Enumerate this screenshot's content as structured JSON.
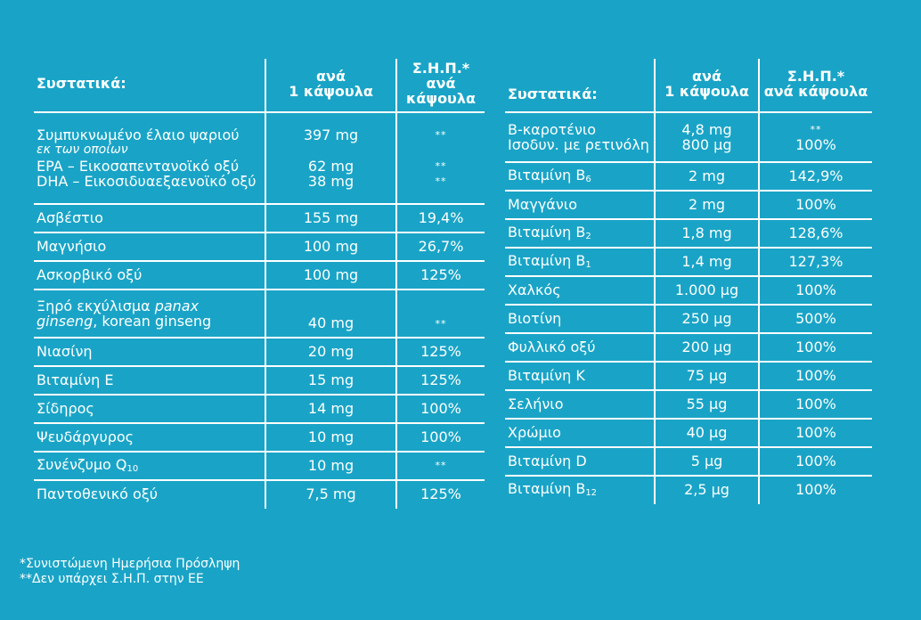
{
  "headers": {
    "ingredients": "Συστατικά:",
    "per_capsule_1": "ανά",
    "per_capsule_2": "1 κάψουλα",
    "rda_1": "Σ.Η.Π.*",
    "rda_2": "ανά κάψουλα"
  },
  "left_rows": [
    {
      "name": "Ασβέστιο",
      "amount": "155 mg",
      "rda": "19,4%"
    },
    {
      "name": "Μαγνήσιο",
      "amount": "100 mg",
      "rda": "26,7%"
    },
    {
      "name": "Ασκορβικό οξύ",
      "amount": "100 mg",
      "rda": "125%"
    },
    {
      "name": "Νιασίνη",
      "amount": "20 mg",
      "rda": "125%"
    },
    {
      "name": "Βιταμίνη Ε",
      "amount": "15 mg",
      "rda": "125%"
    },
    {
      "name": "Σίδηρος",
      "amount": "14 mg",
      "rda": "100%"
    },
    {
      "name": "Ψευδάργυρος",
      "amount": "10 mg",
      "rda": "100%"
    },
    {
      "name_base": "Συνένζυμο Q",
      "name_sub": "10",
      "amount": "10 mg",
      "rda": "**"
    },
    {
      "name": "Παντοθενικό οξύ",
      "amount": "7,5 mg",
      "rda": "125%"
    }
  ],
  "fish_oil": {
    "name": "Συμπυκνωμένο έλαιο ψαριού",
    "sub_label": "εκ των οποίων",
    "epa": "EPA – Εικοσαπεντανοϊκό οξύ",
    "dha": "DHA – Εικοσιδυαεξαενοϊκό οξύ",
    "amount": "397 mg",
    "epa_amount": "62 mg",
    "dha_amount": "38 mg",
    "rda": "**",
    "epa_rda": "**",
    "dha_rda": "**"
  },
  "ginseng": {
    "name_a": "Ξηρό εκχύλισμα ",
    "name_b": "panax",
    "name_c": "ginseng",
    "name_d": ", korean ginseng",
    "amount": "40 mg",
    "rda": "**"
  },
  "beta_carotene": {
    "name": "Β-καροτένιο",
    "equiv": "Ισοδυν. με ρετινόλη",
    "amount": "4,8 mg",
    "equiv_amount": "800 μg",
    "rda": "**",
    "equiv_rda": "100%"
  },
  "right_rows": [
    {
      "name_base": "Βιταμίνη Β",
      "name_sub": "6",
      "amount": "2 mg",
      "rda": "142,9%"
    },
    {
      "name": "Μαγγάνιο",
      "amount": "2 mg",
      "rda": "100%"
    },
    {
      "name_base": "Βιταμίνη Β",
      "name_sub": "2",
      "amount": "1,8 mg",
      "rda": "128,6%"
    },
    {
      "name_base": "Βιταμίνη Β",
      "name_sub": "1",
      "amount": "1,4 mg",
      "rda": "127,3%"
    },
    {
      "name": "Χαλκός",
      "amount": "1.000 μg",
      "rda": "100%"
    },
    {
      "name": "Βιοτίνη",
      "amount": "250 μg",
      "rda": "500%"
    },
    {
      "name": "Φυλλικό οξύ",
      "amount": "200 μg",
      "rda": "100%"
    },
    {
      "name": "Βιταμίνη Κ",
      "amount": "75 μg",
      "rda": "100%"
    },
    {
      "name": "Σελήνιο",
      "amount": "55 μg",
      "rda": "100%"
    },
    {
      "name": "Χρώμιο",
      "amount": "40 μg",
      "rda": "100%"
    },
    {
      "name": "Βιταμίνη D",
      "amount": "5 μg",
      "rda": "100%"
    },
    {
      "name_base": "Βιταμίνη Β",
      "name_sub": "12",
      "amount": "2,5 μg",
      "rda": "100%"
    }
  ],
  "footnotes": {
    "note1": "*Συνιστώμενη Ημερήσια Πρόσληψη",
    "note2": "**Δεν υπάρχει Σ.Η.Π. στην ΕΕ"
  },
  "colors": {
    "background": "#19a4c7",
    "text": "#ffffff"
  }
}
